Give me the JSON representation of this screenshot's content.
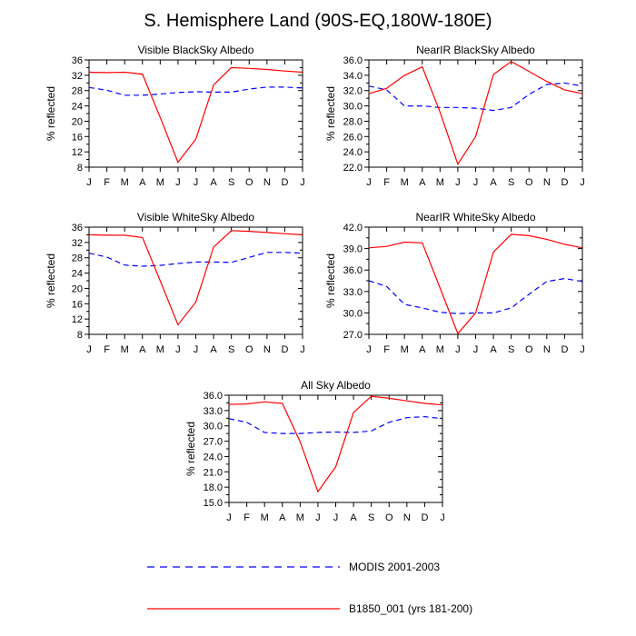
{
  "title": "S. Hemisphere Land (90S-EQ,180W-180E)",
  "colors": {
    "model": "#ff0000",
    "obs": "#0000ff",
    "axis": "#000000"
  },
  "legend": {
    "obs_label": "MODIS 2001-2003",
    "model_label": "B1850_001 (yrs 181-200)"
  },
  "chart_data": [
    {
      "type": "line",
      "title": "Visible BlackSky Albedo",
      "xlabel": "",
      "ylabel": "% reflected",
      "categories": [
        "J",
        "F",
        "M",
        "A",
        "M",
        "J",
        "J",
        "A",
        "S",
        "O",
        "N",
        "D",
        "J"
      ],
      "ylim": [
        8,
        36
      ],
      "yticks": [
        "8",
        "12",
        "16",
        "20",
        "24",
        "28",
        "32",
        "36"
      ],
      "series": [
        {
          "name": "MODIS 2001-2003",
          "values": [
            28.8,
            28.1,
            26.8,
            26.8,
            27.1,
            27.5,
            27.7,
            27.6,
            27.6,
            28.4,
            28.9,
            28.9,
            28.7
          ]
        },
        {
          "name": "B1850_001 (yrs 181-200)",
          "values": [
            32.8,
            32.7,
            32.8,
            32.3,
            21.0,
            9.3,
            15.3,
            29.5,
            34.0,
            33.8,
            33.5,
            33.1,
            32.8
          ]
        }
      ]
    },
    {
      "type": "line",
      "title": "NearIR BlackSky Albedo",
      "xlabel": "",
      "ylabel": "% reflected",
      "categories": [
        "J",
        "F",
        "M",
        "A",
        "M",
        "J",
        "J",
        "A",
        "S",
        "O",
        "N",
        "D",
        "J"
      ],
      "ylim": [
        22,
        36
      ],
      "yticks": [
        "22.0",
        "24.0",
        "26.0",
        "28.0",
        "30.0",
        "32.0",
        "34.0",
        "36.0"
      ],
      "series": [
        {
          "name": "MODIS 2001-2003",
          "values": [
            32.6,
            32.1,
            30.0,
            30.0,
            29.8,
            29.8,
            29.7,
            29.4,
            29.8,
            31.5,
            32.8,
            33.0,
            32.6
          ]
        },
        {
          "name": "B1850_001 (yrs 181-200)",
          "values": [
            31.6,
            32.3,
            34.0,
            35.1,
            29.2,
            22.4,
            26.0,
            34.1,
            35.8,
            34.5,
            33.2,
            32.1,
            31.6
          ]
        }
      ]
    },
    {
      "type": "line",
      "title": "Visible WhiteSky Albedo",
      "xlabel": "",
      "ylabel": "% reflected",
      "categories": [
        "J",
        "F",
        "M",
        "A",
        "M",
        "J",
        "J",
        "A",
        "S",
        "O",
        "N",
        "D",
        "J"
      ],
      "ylim": [
        8,
        36
      ],
      "yticks": [
        "8",
        "12",
        "16",
        "20",
        "24",
        "28",
        "32",
        "36"
      ],
      "series": [
        {
          "name": "MODIS 2001-2003",
          "values": [
            29.2,
            28.2,
            26.1,
            25.8,
            26.0,
            26.5,
            26.9,
            26.9,
            26.8,
            28.1,
            29.4,
            29.4,
            29.2
          ]
        },
        {
          "name": "B1850_001 (yrs 181-200)",
          "values": [
            34.0,
            33.9,
            33.9,
            33.3,
            22.0,
            10.5,
            16.4,
            30.8,
            35.1,
            34.9,
            34.6,
            34.3,
            34.0
          ]
        }
      ]
    },
    {
      "type": "line",
      "title": "NearIR WhiteSky Albedo",
      "xlabel": "",
      "ylabel": "% reflected",
      "categories": [
        "J",
        "F",
        "M",
        "A",
        "M",
        "J",
        "J",
        "A",
        "S",
        "O",
        "N",
        "D",
        "J"
      ],
      "ylim": [
        27,
        42
      ],
      "yticks": [
        "27.0",
        "30.0",
        "33.0",
        "36.0",
        "39.0",
        "42.0"
      ],
      "series": [
        {
          "name": "MODIS 2001-2003",
          "values": [
            34.5,
            33.7,
            31.2,
            30.7,
            30.1,
            29.9,
            30.0,
            30.0,
            30.7,
            32.6,
            34.4,
            34.8,
            34.4
          ]
        },
        {
          "name": "B1850_001 (yrs 181-200)",
          "values": [
            39.1,
            39.3,
            39.9,
            39.8,
            33.5,
            27.1,
            30.0,
            38.5,
            41.0,
            40.8,
            40.3,
            39.6,
            39.1
          ]
        }
      ]
    },
    {
      "type": "line",
      "title": "All Sky Albedo",
      "xlabel": "",
      "ylabel": "% reflected",
      "categories": [
        "J",
        "F",
        "M",
        "A",
        "M",
        "J",
        "J",
        "A",
        "S",
        "O",
        "N",
        "D",
        "J"
      ],
      "ylim": [
        15,
        36
      ],
      "yticks": [
        "15.0",
        "18.0",
        "21.0",
        "24.0",
        "27.0",
        "30.0",
        "33.0",
        "36.0"
      ],
      "series": [
        {
          "name": "MODIS 2001-2003",
          "values": [
            31.4,
            30.7,
            28.7,
            28.5,
            28.5,
            28.7,
            28.8,
            28.7,
            29.0,
            30.7,
            31.6,
            31.8,
            31.4
          ]
        },
        {
          "name": "B1850_001 (yrs 181-200)",
          "values": [
            34.2,
            34.3,
            34.7,
            34.4,
            26.9,
            17.1,
            22.0,
            32.6,
            35.8,
            35.4,
            34.9,
            34.4,
            34.1
          ]
        }
      ]
    }
  ]
}
